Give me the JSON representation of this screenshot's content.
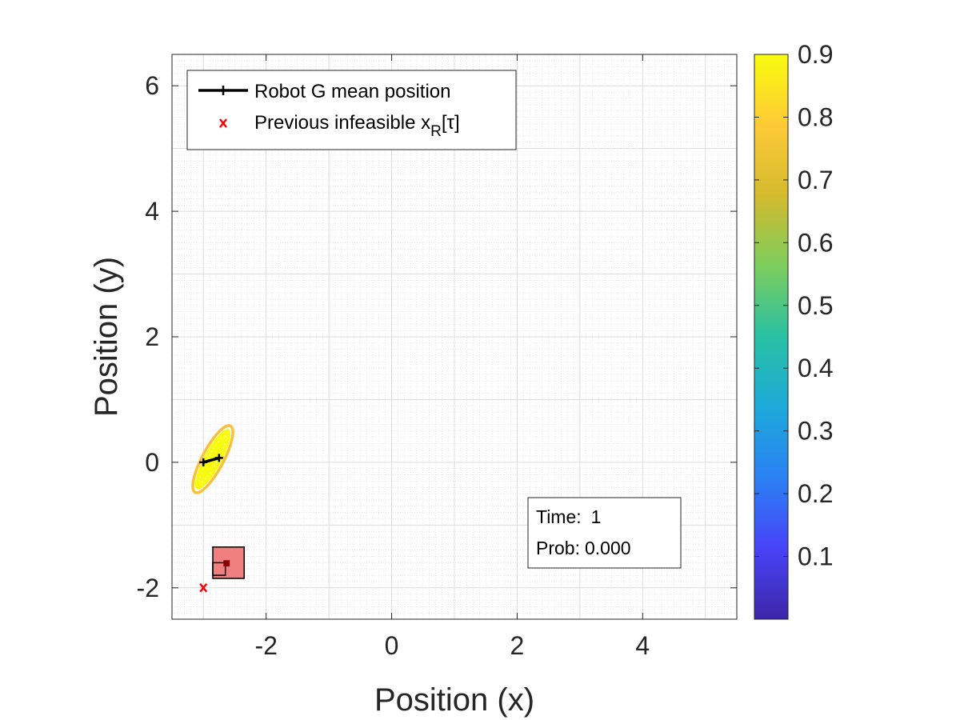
{
  "chart_data": {
    "type": "line",
    "xlabel": "Position (x)",
    "ylabel": "Position (y)",
    "xlim": [
      -3.5,
      5.5
    ],
    "ylim": [
      -2.5,
      6.5
    ],
    "xticks": [
      -2,
      0,
      2,
      4
    ],
    "yticks": [
      -2,
      0,
      2,
      4,
      6
    ],
    "grid": "minor and major on",
    "legend_position": "top-left",
    "legend": [
      {
        "label": "Robot G mean position",
        "marker": "line-plus",
        "color": "#000000"
      },
      {
        "label_main": "Previous infeasible x",
        "label_sub": "R",
        "label_tail": "[τ]",
        "marker": "x",
        "color": "#ff0000"
      }
    ],
    "series": [
      {
        "name": "Robot G mean position",
        "color": "#000000",
        "x": [
          -3.0,
          -2.75
        ],
        "y": [
          0.0,
          0.07
        ]
      }
    ],
    "infeasible_points": [
      {
        "x": -3.0,
        "y": -2.0
      }
    ],
    "uncertainty_ellipse": {
      "center": [
        -2.85,
        0.05
      ],
      "semi_major": 0.6,
      "semi_minor": 0.17,
      "angle_deg": 62,
      "color_outer": "#fbc03a",
      "color_inner": "#f9fb0e"
    },
    "obstacle_region": {
      "x": [
        -2.85,
        -2.35
      ],
      "y": [
        -1.85,
        -1.35
      ],
      "fill": "#f08080"
    },
    "inner_square": {
      "x": [
        -2.85,
        -2.65
      ],
      "y": [
        -1.8,
        -1.6
      ]
    },
    "small_marker": {
      "x": [
        -2.68,
        -2.58
      ],
      "y": [
        -1.66,
        -1.56
      ],
      "color": "#8b0000"
    },
    "colorbar": {
      "min": 0.0,
      "max": 0.9,
      "ticks": [
        0.1,
        0.2,
        0.3,
        0.4,
        0.5,
        0.6,
        0.7,
        0.8,
        0.9
      ],
      "tick_labels": [
        "0.1",
        "0.2",
        "0.3",
        "0.4",
        "0.5",
        "0.6",
        "0.7",
        "0.8",
        "0.9"
      ],
      "colormap_stops": [
        "#3e26a8",
        "#4743f8",
        "#2b81f3",
        "#1da9da",
        "#28c1a3",
        "#7ccd5d",
        "#d4bb2e",
        "#feca36",
        "#f9fb0e"
      ]
    },
    "annotation": {
      "time_label": "Time:",
      "time_value": "1",
      "prob_label": "Prob:",
      "prob_value": "0.000"
    }
  }
}
